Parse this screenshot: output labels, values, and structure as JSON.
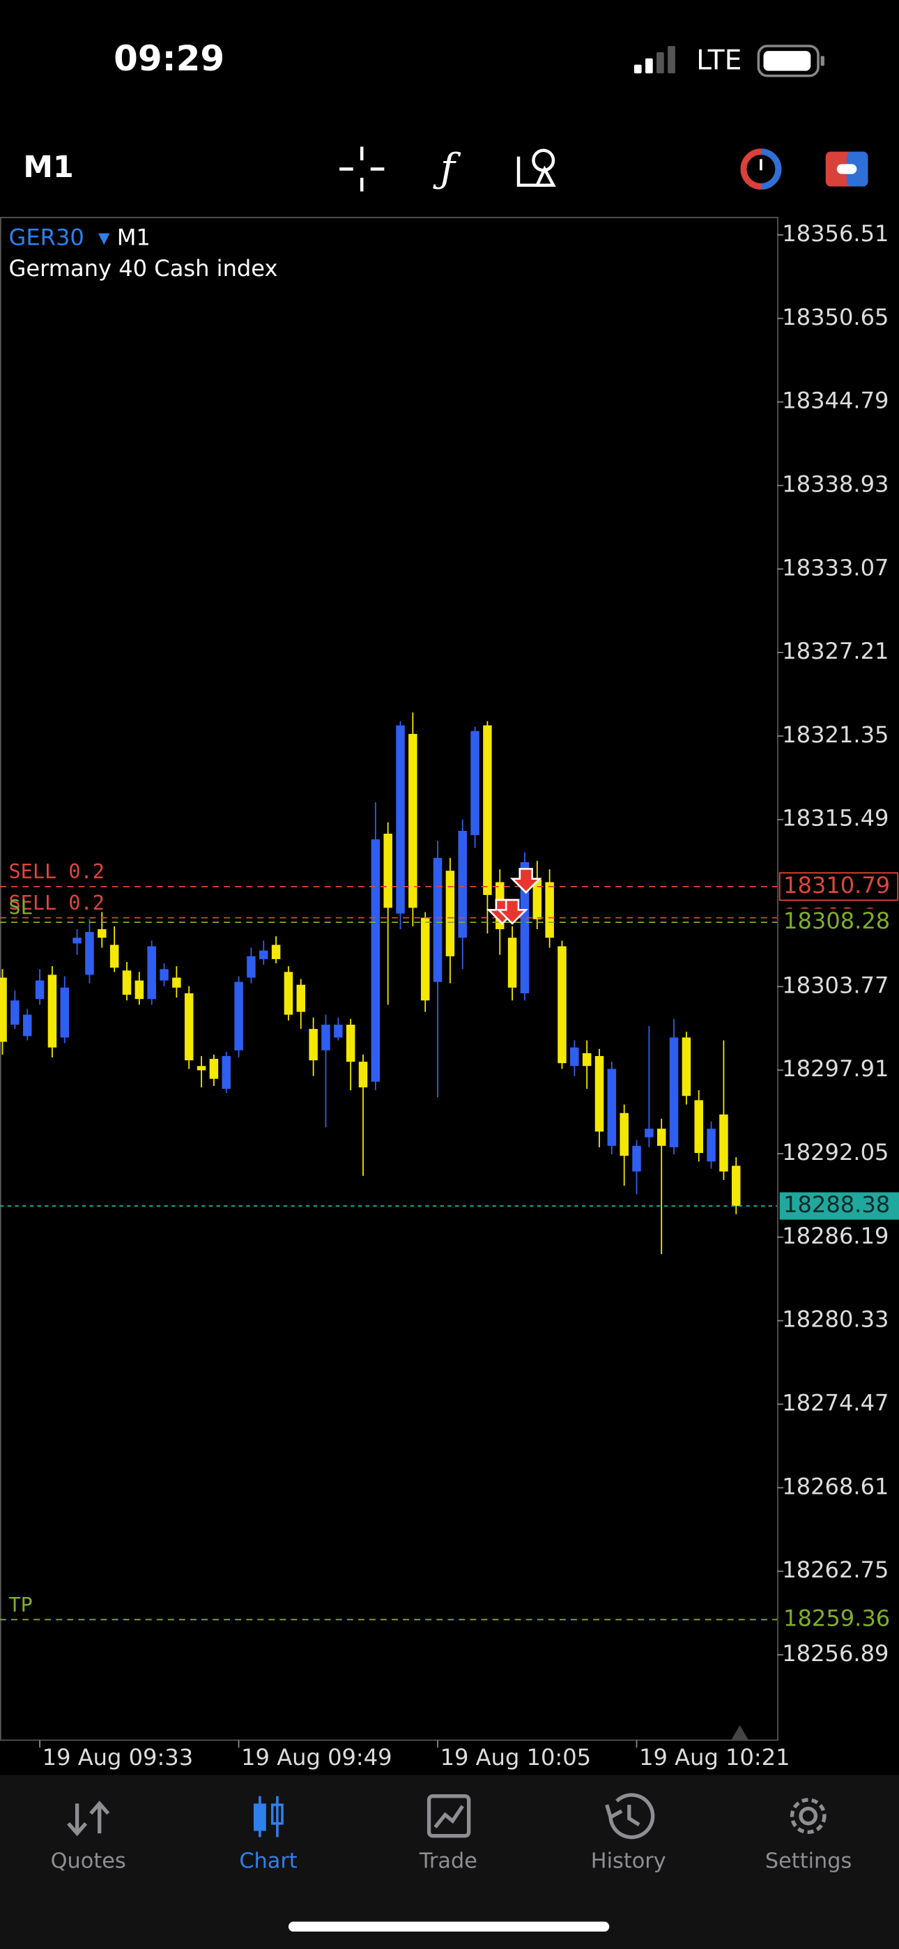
{
  "status_bar": {
    "time": "09:29",
    "network": "LTE"
  },
  "toolbar": {
    "timeframe": "M1"
  },
  "chart": {
    "type": "candlestick",
    "symbol": "GER30",
    "timeframe": "M1",
    "description": "Germany 40 Cash index",
    "ylim": [
      18250.9,
      18357.73
    ],
    "yticks": [
      18356.51,
      18350.65,
      18344.79,
      18338.93,
      18333.07,
      18327.21,
      18321.35,
      18315.49,
      18303.77,
      18297.91,
      18292.05,
      18286.19,
      18280.33,
      18274.47,
      18268.61,
      18262.75,
      18256.89
    ],
    "categories": [
      null,
      null,
      null,
      "19 Aug 09:33",
      null,
      null,
      null,
      null,
      null,
      null,
      null,
      null,
      null,
      null,
      null,
      null,
      null,
      null,
      null,
      "19 Aug 09:49",
      null,
      null,
      null,
      null,
      null,
      null,
      null,
      null,
      null,
      null,
      null,
      null,
      null,
      null,
      null,
      "19 Aug 10:05",
      null,
      null,
      null,
      null,
      null,
      null,
      null,
      null,
      null,
      null,
      null,
      null,
      null,
      null,
      null,
      "19 Aug 10:21",
      null,
      null,
      null,
      null,
      null,
      null,
      null,
      null
    ],
    "bull_color": "#2f5ff0",
    "bear_color": "#f5e800",
    "candles": [
      {
        "open": 18304.4,
        "high": 18305,
        "low": 18299,
        "close": 18299.9
      },
      {
        "open": 18301.1,
        "high": 18303.5,
        "low": 18300.8,
        "close": 18302.8
      },
      {
        "open": 18300.3,
        "high": 18302.2,
        "low": 18300,
        "close": 18301.8
      },
      {
        "open": 18302.9,
        "high": 18305,
        "low": 18302.5,
        "close": 18304.2
      },
      {
        "open": 18304.6,
        "high": 18305.2,
        "low": 18298.8,
        "close": 18299.5
      },
      {
        "open": 18300.2,
        "high": 18304.5,
        "low": 18299.8,
        "close": 18303.7
      },
      {
        "open": 18306.8,
        "high": 18307.8,
        "low": 18306,
        "close": 18307.2
      },
      {
        "open": 18304.6,
        "high": 18308.5,
        "low": 18304,
        "close": 18307.6
      },
      {
        "open": 18307.8,
        "high": 18309,
        "low": 18306.5,
        "close": 18307.2
      },
      {
        "open": 18306.7,
        "high": 18308,
        "low": 18304.8,
        "close": 18305.1
      },
      {
        "open": 18304.9,
        "high": 18305.5,
        "low": 18302.8,
        "close": 18303.2
      },
      {
        "open": 18304.2,
        "high": 18304.8,
        "low": 18302.5,
        "close": 18302.9
      },
      {
        "open": 18302.9,
        "high": 18307,
        "low": 18302.5,
        "close": 18306.6
      },
      {
        "open": 18304.2,
        "high": 18305.4,
        "low": 18303.8,
        "close": 18305
      },
      {
        "open": 18304.4,
        "high": 18305.2,
        "low": 18303,
        "close": 18303.7
      },
      {
        "open": 18303.3,
        "high": 18303.8,
        "low": 18298,
        "close": 18298.6
      },
      {
        "open": 18298.2,
        "high": 18298.9,
        "low": 18296.7,
        "close": 18297.9
      },
      {
        "open": 18298.7,
        "high": 18299,
        "low": 18296.8,
        "close": 18297.3
      },
      {
        "open": 18296.6,
        "high": 18299.2,
        "low": 18296.3,
        "close": 18298.9
      },
      {
        "open": 18299.3,
        "high": 18304.5,
        "low": 18298.8,
        "close": 18304.1
      },
      {
        "open": 18304.4,
        "high": 18306.5,
        "low": 18304,
        "close": 18305.9
      },
      {
        "open": 18305.7,
        "high": 18307,
        "low": 18305.3,
        "close": 18306.3
      },
      {
        "open": 18306.7,
        "high": 18307.3,
        "low": 18305.4,
        "close": 18305.7
      },
      {
        "open": 18304.8,
        "high": 18305.2,
        "low": 18301.4,
        "close": 18301.8
      },
      {
        "open": 18303.9,
        "high": 18304.3,
        "low": 18300.8,
        "close": 18302
      },
      {
        "open": 18300.8,
        "high": 18301.6,
        "low": 18297.5,
        "close": 18298.6
      },
      {
        "open": 18299.3,
        "high": 18301.8,
        "low": 18293.9,
        "close": 18301.1
      },
      {
        "open": 18300.2,
        "high": 18301.6,
        "low": 18300,
        "close": 18301.1
      },
      {
        "open": 18301.1,
        "high": 18301.5,
        "low": 18296.5,
        "close": 18298.5
      },
      {
        "open": 18298.5,
        "high": 18299,
        "low": 18290.5,
        "close": 18296.7
      },
      {
        "open": 18297.1,
        "high": 18316.7,
        "low": 18296.5,
        "close": 18314.1
      },
      {
        "open": 18314.5,
        "high": 18315.3,
        "low": 18302.5,
        "close": 18309.3
      },
      {
        "open": 18308.9,
        "high": 18322.4,
        "low": 18307.8,
        "close": 18322.1
      },
      {
        "open": 18321.5,
        "high": 18323,
        "low": 18308,
        "close": 18309.3
      },
      {
        "open": 18308.6,
        "high": 18309,
        "low": 18302,
        "close": 18302.8
      },
      {
        "open": 18304.1,
        "high": 18314,
        "low": 18296,
        "close": 18312.8
      },
      {
        "open": 18311.9,
        "high": 18312.8,
        "low": 18304,
        "close": 18305.9
      },
      {
        "open": 18307.2,
        "high": 18315.5,
        "low": 18305,
        "close": 18314.7
      },
      {
        "open": 18314.4,
        "high": 18322,
        "low": 18313.5,
        "close": 18321.7
      },
      {
        "open": 18322.1,
        "high": 18322.4,
        "low": 18307.5,
        "close": 18310.2
      },
      {
        "open": 18311.1,
        "high": 18312,
        "low": 18306,
        "close": 18307.8
      },
      {
        "open": 18307.2,
        "high": 18308,
        "low": 18302.8,
        "close": 18303.7
      },
      {
        "open": 18303.3,
        "high": 18313.2,
        "low": 18302.8,
        "close": 18312.5
      },
      {
        "open": 18311.3,
        "high": 18312.6,
        "low": 18307.8,
        "close": 18308.5
      },
      {
        "open": 18311.1,
        "high": 18312,
        "low": 18306.5,
        "close": 18307.2
      },
      {
        "open": 18306.6,
        "high": 18307,
        "low": 18298,
        "close": 18298.4
      },
      {
        "open": 18298.2,
        "high": 18300,
        "low": 18297.5,
        "close": 18299.5
      },
      {
        "open": 18299.1,
        "high": 18300,
        "low": 18296.6,
        "close": 18298.2
      },
      {
        "open": 18298.9,
        "high": 18299.4,
        "low": 18292.5,
        "close": 18293.6
      },
      {
        "open": 18292.6,
        "high": 18298.5,
        "low": 18292,
        "close": 18298
      },
      {
        "open": 18294.9,
        "high": 18295.5,
        "low": 18289.8,
        "close": 18291.9
      },
      {
        "open": 18290.8,
        "high": 18293,
        "low": 18289.2,
        "close": 18292.6
      },
      {
        "open": 18293.2,
        "high": 18301,
        "low": 18292.5,
        "close": 18293.8
      },
      {
        "open": 18293.8,
        "high": 18294.5,
        "low": 18285,
        "close": 18292.6
      },
      {
        "open": 18292.5,
        "high": 18301.5,
        "low": 18292,
        "close": 18300.2
      },
      {
        "open": 18300.2,
        "high": 18300.6,
        "low": 18295.5,
        "close": 18296.1
      },
      {
        "open": 18295.8,
        "high": 18296.5,
        "low": 18291.5,
        "close": 18292.1
      },
      {
        "open": 18291.5,
        "high": 18294.3,
        "low": 18291,
        "close": 18293.8
      },
      {
        "open": 18294.8,
        "high": 18300,
        "low": 18290.2,
        "close": 18290.8
      },
      {
        "open": 18291.2,
        "high": 18291.8,
        "low": 18287.8,
        "close": 18288.38
      }
    ],
    "levels": [
      {
        "label": "SELL 0.2",
        "price": 18310.79,
        "color": "#e0463c"
      },
      {
        "label": "SELL 0.2",
        "price": 18308.6,
        "color": "#e0463c"
      },
      {
        "label": "SL",
        "price": 18308.28,
        "color": "#7fae2c"
      },
      {
        "label": "TP",
        "price": 18259.36,
        "color": "#7fae2c"
      }
    ],
    "bid": 18288.38,
    "bid_color": "#20a89e"
  },
  "tabs": [
    {
      "label": "Quotes"
    },
    {
      "label": "Chart"
    },
    {
      "label": "Trade"
    },
    {
      "label": "History"
    },
    {
      "label": "Settings"
    }
  ]
}
